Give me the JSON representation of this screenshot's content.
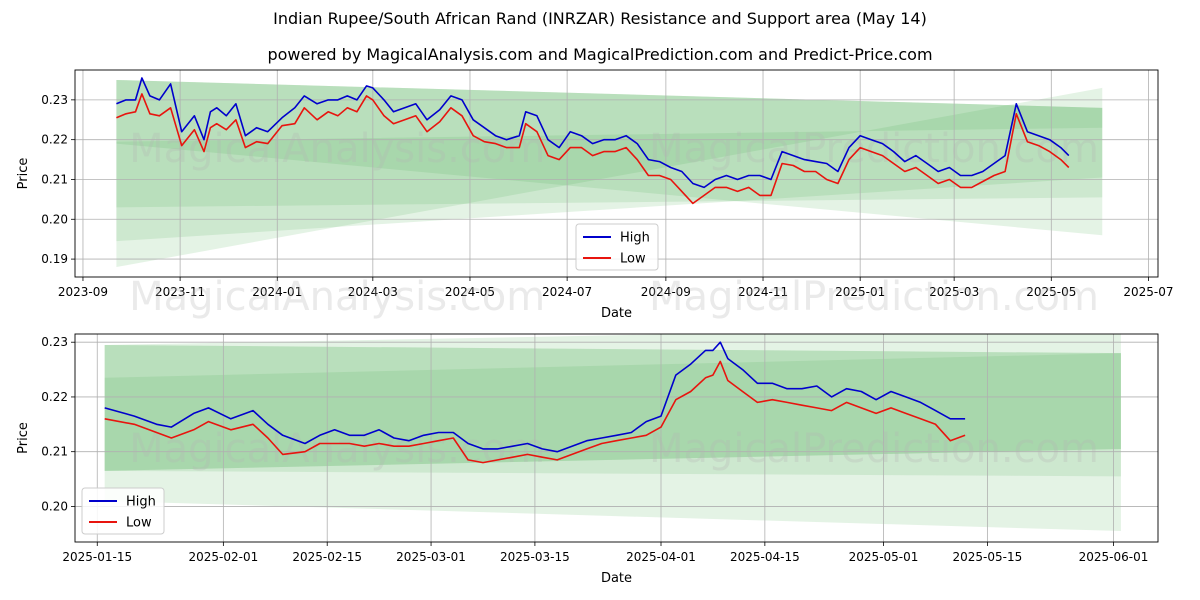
{
  "title": "Indian Rupee/South African Rand (INRZAR) Resistance and Support area (May 14)",
  "subtitle": "powered by MagicalAnalysis.com and MagicalPrediction.com and Predict-Price.com",
  "watermarks": [
    "MagicalAnalysis.com",
    "MagicalPrediction.com"
  ],
  "colors": {
    "high": "#0000cc",
    "low": "#e8140e",
    "band": "#4caf50",
    "grid": "#b0b0b0"
  },
  "chart_data": [
    {
      "type": "line",
      "xlabel": "Date",
      "ylabel": "Price",
      "xlim": [
        "2023-08-27",
        "2025-07-07"
      ],
      "ylim": [
        0.1855,
        0.2375
      ],
      "grid": true,
      "legend_position": "lower-center",
      "x_ticks": [
        "2023-09",
        "2023-11",
        "2024-01",
        "2024-03",
        "2024-05",
        "2024-07",
        "2024-09",
        "2024-11",
        "2025-01",
        "2025-03",
        "2025-05",
        "2025-07"
      ],
      "x_tick_dates": [
        "2023-09-01",
        "2023-11-01",
        "2024-01-01",
        "2024-03-01",
        "2024-05-01",
        "2024-07-01",
        "2024-09-01",
        "2024-11-01",
        "2025-01-01",
        "2025-03-01",
        "2025-05-01",
        "2025-07-01"
      ],
      "y_ticks": [
        "0.19",
        "0.20",
        "0.21",
        "0.22",
        "0.23"
      ],
      "y_tick_values": [
        0.19,
        0.2,
        0.21,
        0.22,
        0.23
      ],
      "bands": [
        {
          "x": [
            "2023-09-22",
            "2025-06-02"
          ],
          "top": [
            0.235,
            0.228
          ],
          "bottom": [
            0.203,
            0.2055
          ]
        },
        {
          "x": [
            "2023-09-22",
            "2025-06-02"
          ],
          "top": [
            0.235,
            0.228
          ],
          "bottom": [
            0.1945,
            0.2105
          ]
        },
        {
          "x": [
            "2023-09-22",
            "2025-06-02"
          ],
          "top": [
            0.2195,
            0.223
          ],
          "bottom": [
            0.188,
            0.233
          ]
        },
        {
          "x": [
            "2023-09-22",
            "2025-06-02"
          ],
          "top": [
            0.235,
            0.228
          ],
          "bottom": [
            0.219,
            0.196
          ]
        }
      ],
      "series": [
        {
          "name": "High",
          "x": [
            "2023-09-22",
            "2023-09-28",
            "2023-10-04",
            "2023-10-08",
            "2023-10-13",
            "2023-10-19",
            "2023-10-26",
            "2023-11-02",
            "2023-11-10",
            "2023-11-16",
            "2023-11-20",
            "2023-11-24",
            "2023-11-30",
            "2023-12-06",
            "2023-12-12",
            "2023-12-19",
            "2023-12-26",
            "2024-01-04",
            "2024-01-12",
            "2024-01-18",
            "2024-01-26",
            "2024-02-02",
            "2024-02-08",
            "2024-02-14",
            "2024-02-20",
            "2024-02-26",
            "2024-03-01",
            "2024-03-08",
            "2024-03-14",
            "2024-03-21",
            "2024-03-28",
            "2024-04-04",
            "2024-04-12",
            "2024-04-19",
            "2024-04-26",
            "2024-05-03",
            "2024-05-10",
            "2024-05-17",
            "2024-05-24",
            "2024-06-01",
            "2024-06-05",
            "2024-06-12",
            "2024-06-19",
            "2024-06-26",
            "2024-07-03",
            "2024-07-10",
            "2024-07-17",
            "2024-07-24",
            "2024-07-31",
            "2024-08-07",
            "2024-08-14",
            "2024-08-21",
            "2024-08-28",
            "2024-09-04",
            "2024-09-11",
            "2024-09-18",
            "2024-09-25",
            "2024-10-02",
            "2024-10-09",
            "2024-10-16",
            "2024-10-23",
            "2024-10-30",
            "2024-11-06",
            "2024-11-13",
            "2024-11-20",
            "2024-11-27",
            "2024-12-04",
            "2024-12-11",
            "2024-12-18",
            "2024-12-25",
            "2025-01-01",
            "2025-01-08",
            "2025-01-15",
            "2025-01-22",
            "2025-01-29",
            "2025-02-05",
            "2025-02-12",
            "2025-02-19",
            "2025-02-26",
            "2025-03-05",
            "2025-03-12",
            "2025-03-19",
            "2025-03-26",
            "2025-04-02",
            "2025-04-09",
            "2025-04-16",
            "2025-04-23",
            "2025-04-30",
            "2025-05-07",
            "2025-05-12"
          ],
          "y": [
            0.229,
            0.23,
            0.23,
            0.2355,
            0.231,
            0.23,
            0.234,
            0.222,
            0.226,
            0.22,
            0.227,
            0.228,
            0.226,
            0.229,
            0.221,
            0.223,
            0.222,
            0.2255,
            0.228,
            0.231,
            0.229,
            0.23,
            0.23,
            0.231,
            0.23,
            0.2335,
            0.233,
            0.23,
            0.227,
            0.228,
            0.229,
            0.225,
            0.2275,
            0.231,
            0.23,
            0.225,
            0.223,
            0.221,
            0.22,
            0.221,
            0.227,
            0.226,
            0.22,
            0.218,
            0.222,
            0.221,
            0.219,
            0.22,
            0.22,
            0.221,
            0.219,
            0.215,
            0.2145,
            0.213,
            0.212,
            0.209,
            0.208,
            0.21,
            0.211,
            0.21,
            0.211,
            0.211,
            0.21,
            0.217,
            0.216,
            0.215,
            0.2145,
            0.214,
            0.212,
            0.218,
            0.221,
            0.22,
            0.219,
            0.217,
            0.2145,
            0.216,
            0.214,
            0.212,
            0.213,
            0.211,
            0.211,
            0.212,
            0.214,
            0.216,
            0.229,
            0.222,
            0.221,
            0.22,
            0.218,
            0.216
          ]
        },
        {
          "name": "Low",
          "x": [
            "2023-09-22",
            "2023-09-28",
            "2023-10-04",
            "2023-10-08",
            "2023-10-13",
            "2023-10-19",
            "2023-10-26",
            "2023-11-02",
            "2023-11-10",
            "2023-11-16",
            "2023-11-20",
            "2023-11-24",
            "2023-11-30",
            "2023-12-06",
            "2023-12-12",
            "2023-12-19",
            "2023-12-26",
            "2024-01-04",
            "2024-01-12",
            "2024-01-18",
            "2024-01-26",
            "2024-02-02",
            "2024-02-08",
            "2024-02-14",
            "2024-02-20",
            "2024-02-26",
            "2024-03-01",
            "2024-03-08",
            "2024-03-14",
            "2024-03-21",
            "2024-03-28",
            "2024-04-04",
            "2024-04-12",
            "2024-04-19",
            "2024-04-26",
            "2024-05-03",
            "2024-05-10",
            "2024-05-17",
            "2024-05-24",
            "2024-06-01",
            "2024-06-05",
            "2024-06-12",
            "2024-06-19",
            "2024-06-26",
            "2024-07-03",
            "2024-07-10",
            "2024-07-17",
            "2024-07-24",
            "2024-07-31",
            "2024-08-07",
            "2024-08-14",
            "2024-08-21",
            "2024-08-28",
            "2024-09-04",
            "2024-09-11",
            "2024-09-18",
            "2024-09-25",
            "2024-10-02",
            "2024-10-09",
            "2024-10-16",
            "2024-10-23",
            "2024-10-30",
            "2024-11-06",
            "2024-11-13",
            "2024-11-20",
            "2024-11-27",
            "2024-12-04",
            "2024-12-11",
            "2024-12-18",
            "2024-12-25",
            "2025-01-01",
            "2025-01-08",
            "2025-01-15",
            "2025-01-22",
            "2025-01-29",
            "2025-02-05",
            "2025-02-12",
            "2025-02-19",
            "2025-02-26",
            "2025-03-05",
            "2025-03-12",
            "2025-03-19",
            "2025-03-26",
            "2025-04-02",
            "2025-04-09",
            "2025-04-16",
            "2025-04-23",
            "2025-04-30",
            "2025-05-07",
            "2025-05-12"
          ],
          "y": [
            0.2255,
            0.2265,
            0.227,
            0.2315,
            0.2265,
            0.226,
            0.228,
            0.2185,
            0.2225,
            0.217,
            0.223,
            0.224,
            0.2225,
            0.225,
            0.218,
            0.2195,
            0.219,
            0.2235,
            0.224,
            0.228,
            0.225,
            0.227,
            0.226,
            0.228,
            0.227,
            0.231,
            0.23,
            0.226,
            0.224,
            0.225,
            0.226,
            0.222,
            0.2245,
            0.228,
            0.226,
            0.221,
            0.2195,
            0.219,
            0.218,
            0.218,
            0.224,
            0.222,
            0.216,
            0.215,
            0.218,
            0.218,
            0.216,
            0.217,
            0.217,
            0.218,
            0.215,
            0.211,
            0.211,
            0.21,
            0.207,
            0.204,
            0.206,
            0.208,
            0.208,
            0.207,
            0.208,
            0.206,
            0.206,
            0.214,
            0.2135,
            0.212,
            0.212,
            0.21,
            0.209,
            0.215,
            0.218,
            0.217,
            0.216,
            0.214,
            0.212,
            0.213,
            0.211,
            0.209,
            0.21,
            0.208,
            0.208,
            0.2095,
            0.211,
            0.212,
            0.2265,
            0.2195,
            0.2185,
            0.217,
            0.215,
            0.213
          ]
        }
      ]
    },
    {
      "type": "line",
      "xlabel": "Date",
      "ylabel": "Price",
      "xlim": [
        "2025-01-12",
        "2025-06-07"
      ],
      "ylim": [
        0.1935,
        0.2315
      ],
      "grid": true,
      "legend_position": "lower-left",
      "x_ticks": [
        "2025-01-15",
        "2025-02-01",
        "2025-02-15",
        "2025-03-01",
        "2025-03-15",
        "2025-04-01",
        "2025-04-15",
        "2025-05-01",
        "2025-05-15",
        "2025-06-01"
      ],
      "y_ticks": [
        "0.20",
        "0.21",
        "0.22",
        "0.23"
      ],
      "y_tick_values": [
        0.2,
        0.21,
        0.22,
        0.23
      ],
      "bands": [
        {
          "x": [
            "2025-01-16",
            "2025-06-02"
          ],
          "top": [
            0.2235,
            0.228
          ],
          "bottom": [
            0.2065,
            0.2105
          ]
        },
        {
          "x": [
            "2025-01-16",
            "2025-06-02"
          ],
          "top": [
            0.2295,
            0.228
          ],
          "bottom": [
            0.2065,
            0.2105
          ]
        },
        {
          "x": [
            "2025-01-16",
            "2025-06-02"
          ],
          "top": [
            0.2295,
            0.233
          ],
          "bottom": [
            0.201,
            0.1955
          ]
        },
        {
          "x": [
            "2025-01-16",
            "2025-06-02"
          ],
          "top": [
            0.2295,
            0.228
          ],
          "bottom": [
            0.2065,
            0.2055
          ]
        }
      ],
      "series": [
        {
          "name": "High",
          "x": [
            "2025-01-16",
            "2025-01-20",
            "2025-01-23",
            "2025-01-25",
            "2025-01-28",
            "2025-01-30",
            "2025-02-02",
            "2025-02-05",
            "2025-02-07",
            "2025-02-09",
            "2025-02-12",
            "2025-02-14",
            "2025-02-16",
            "2025-02-18",
            "2025-02-20",
            "2025-02-22",
            "2025-02-24",
            "2025-02-26",
            "2025-02-28",
            "2025-03-02",
            "2025-03-04",
            "2025-03-06",
            "2025-03-08",
            "2025-03-10",
            "2025-03-12",
            "2025-03-14",
            "2025-03-16",
            "2025-03-18",
            "2025-03-20",
            "2025-03-22",
            "2025-03-24",
            "2025-03-26",
            "2025-03-28",
            "2025-03-30",
            "2025-04-01",
            "2025-04-03",
            "2025-04-05",
            "2025-04-07",
            "2025-04-08",
            "2025-04-09",
            "2025-04-10",
            "2025-04-12",
            "2025-04-14",
            "2025-04-16",
            "2025-04-18",
            "2025-04-20",
            "2025-04-22",
            "2025-04-24",
            "2025-04-26",
            "2025-04-28",
            "2025-04-30",
            "2025-05-02",
            "2025-05-04",
            "2025-05-06",
            "2025-05-08",
            "2025-05-10",
            "2025-05-12"
          ],
          "y": [
            0.218,
            0.2165,
            0.215,
            0.2145,
            0.217,
            0.218,
            0.216,
            0.2175,
            0.215,
            0.213,
            0.2115,
            0.213,
            0.214,
            0.213,
            0.213,
            0.214,
            0.2125,
            0.212,
            0.213,
            0.2135,
            0.2135,
            0.2115,
            0.2105,
            0.2105,
            0.211,
            0.2115,
            0.2105,
            0.21,
            0.211,
            0.212,
            0.2125,
            0.213,
            0.2135,
            0.2155,
            0.2165,
            0.224,
            0.226,
            0.2285,
            0.2285,
            0.23,
            0.227,
            0.225,
            0.2225,
            0.2225,
            0.2215,
            0.2215,
            0.222,
            0.22,
            0.2215,
            0.221,
            0.2195,
            0.221,
            0.22,
            0.219,
            0.2175,
            0.216,
            0.216
          ]
        },
        {
          "name": "Low",
          "x": [
            "2025-01-16",
            "2025-01-20",
            "2025-01-23",
            "2025-01-25",
            "2025-01-28",
            "2025-01-30",
            "2025-02-02",
            "2025-02-05",
            "2025-02-07",
            "2025-02-09",
            "2025-02-12",
            "2025-02-14",
            "2025-02-16",
            "2025-02-18",
            "2025-02-20",
            "2025-02-22",
            "2025-02-24",
            "2025-02-26",
            "2025-02-28",
            "2025-03-02",
            "2025-03-04",
            "2025-03-06",
            "2025-03-08",
            "2025-03-10",
            "2025-03-12",
            "2025-03-14",
            "2025-03-16",
            "2025-03-18",
            "2025-03-20",
            "2025-03-22",
            "2025-03-24",
            "2025-03-26",
            "2025-03-28",
            "2025-03-30",
            "2025-04-01",
            "2025-04-03",
            "2025-04-05",
            "2025-04-07",
            "2025-04-08",
            "2025-04-09",
            "2025-04-10",
            "2025-04-12",
            "2025-04-14",
            "2025-04-16",
            "2025-04-18",
            "2025-04-20",
            "2025-04-22",
            "2025-04-24",
            "2025-04-26",
            "2025-04-28",
            "2025-04-30",
            "2025-05-02",
            "2025-05-04",
            "2025-05-06",
            "2025-05-08",
            "2025-05-10",
            "2025-05-12"
          ],
          "y": [
            0.216,
            0.215,
            0.2135,
            0.2125,
            0.214,
            0.2155,
            0.214,
            0.215,
            0.2125,
            0.2095,
            0.21,
            0.2115,
            0.2115,
            0.2115,
            0.211,
            0.2115,
            0.211,
            0.211,
            0.2115,
            0.212,
            0.2125,
            0.2085,
            0.208,
            0.2085,
            0.209,
            0.2095,
            0.209,
            0.2085,
            0.2095,
            0.2105,
            0.2115,
            0.212,
            0.2125,
            0.213,
            0.2145,
            0.2195,
            0.221,
            0.2235,
            0.224,
            0.2265,
            0.223,
            0.221,
            0.219,
            0.2195,
            0.219,
            0.2185,
            0.218,
            0.2175,
            0.219,
            0.218,
            0.217,
            0.218,
            0.217,
            0.216,
            0.215,
            0.212,
            0.213
          ]
        }
      ]
    }
  ]
}
